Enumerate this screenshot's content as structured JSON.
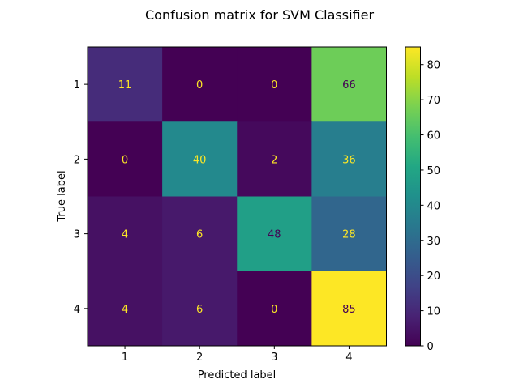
{
  "chart_data": {
    "type": "heatmap",
    "title": "Confusion matrix for SVM Classifier",
    "xlabel": "Predicted label",
    "ylabel": "True label",
    "x_categories": [
      "1",
      "2",
      "3",
      "4"
    ],
    "y_categories": [
      "1",
      "2",
      "3",
      "4"
    ],
    "values": [
      [
        11,
        0,
        0,
        66
      ],
      [
        0,
        40,
        2,
        36
      ],
      [
        4,
        6,
        48,
        28
      ],
      [
        4,
        6,
        0,
        85
      ]
    ],
    "colormap": "viridis",
    "vmin": 0,
    "vmax": 85,
    "colorbar_ticks": [
      "0",
      "10",
      "20",
      "30",
      "40",
      "50",
      "60",
      "70",
      "80"
    ],
    "label_colors": {
      "light": "#fde725",
      "dark": "#440154"
    }
  }
}
